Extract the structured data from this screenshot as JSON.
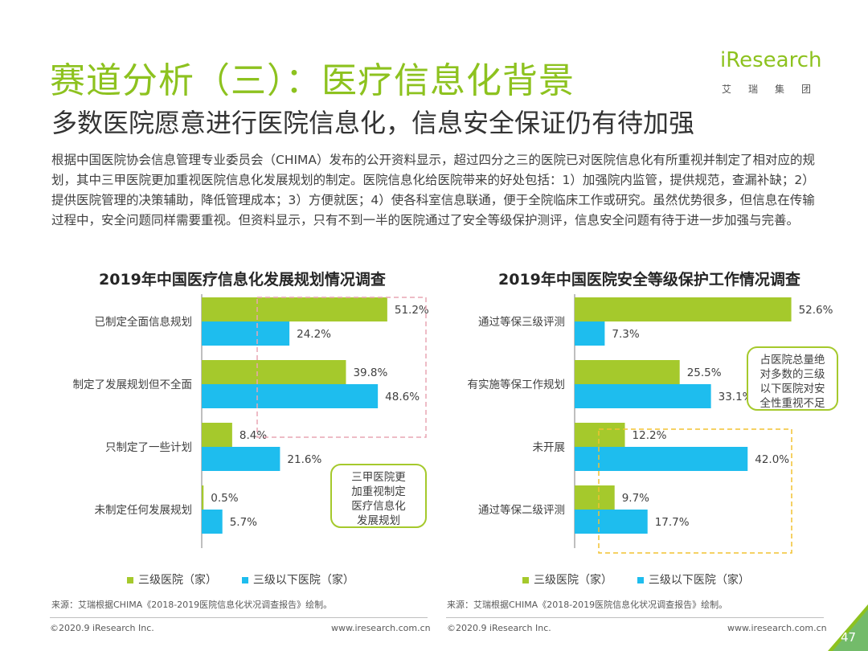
{
  "header": {
    "title": "赛道分析（三）：医疗信息化背景",
    "subtitle": "多数医院愿意进行医院信息化，信息安全保证仍有待加强",
    "body": "根据中国医院协会信息管理专业委员会（CHIMA）发布的公开资料显示，超过四分之三的医院已对医院信息化有所重视并制定了相对应的规划，其中三甲医院更加重视医院信息化发展规划的制定。医院信息化给医院带来的好处包括：1）加强院内监管，提供规范，查漏补缺；2）提供医院管理的决策辅助，降低管理成本；3）方便就医；4）使各科室信息联通，便于全院临床工作或研究。虽然优势很多，但信息在传输过程中，安全问题同样需要重视。但资料显示，只有不到一半的医院通过了安全等级保护测评，信息安全问题有待于进一步加强与完善。"
  },
  "logo": {
    "brand": "iResearch",
    "cn": "艾瑞集团",
    "color": "#8dc21f"
  },
  "colors": {
    "green": "#a5c92c",
    "blue": "#1ebdee",
    "accent": "#8dc21f",
    "pink_dash": "#e9a5b4",
    "yellow_dash": "#f2c230",
    "note_border": "#a5c92c"
  },
  "chart_data": [
    {
      "type": "bar",
      "orientation": "horizontal",
      "title": "2019年中国医疗信息化发展规划情况调查",
      "categories": [
        "已制定全面信息规划",
        "制定了发展规划但不全面",
        "只制定了一些计划",
        "未制定任何发展规划"
      ],
      "series": [
        {
          "name": "三级医院（家）",
          "values": [
            51.2,
            39.8,
            8.4,
            0.5
          ],
          "labels": [
            "51.2%",
            "39.8%",
            "8.4%",
            "0.5%"
          ]
        },
        {
          "name": "三级以下医院（家）",
          "values": [
            24.2,
            48.6,
            21.6,
            5.7
          ],
          "labels": [
            "24.2%",
            "48.6%",
            "21.6%",
            "5.7%"
          ]
        }
      ],
      "xlim": [
        0,
        55
      ],
      "grid": false,
      "legend": "bottom",
      "annotation": "三甲医院更加重视制定医疗信息化发展规划",
      "annotation_lines": [
        "三甲医院更",
        "加重视制定",
        "医疗信息化",
        "发展规划"
      ],
      "source": "来源：艾瑞根据CHIMA《2018-2019医院信息化状况调查报告》绘制。"
    },
    {
      "type": "bar",
      "orientation": "horizontal",
      "title": "2019年中国医院安全等级保护工作情况调查",
      "categories": [
        "通过等保三级评测",
        "有实施等保工作规划",
        "未开展",
        "通过等保二级评测"
      ],
      "series": [
        {
          "name": "三级医院（家）",
          "values": [
            52.6,
            25.5,
            12.2,
            9.7
          ],
          "labels": [
            "52.6%",
            "25.5%",
            "12.2%",
            "9.7%"
          ]
        },
        {
          "name": "三级以下医院（家）",
          "values": [
            7.3,
            33.1,
            42.0,
            17.7
          ],
          "labels": [
            "7.3%",
            "33.1%",
            "42.0%",
            "17.7%"
          ]
        }
      ],
      "xlim": [
        0,
        56
      ],
      "grid": false,
      "legend": "bottom",
      "annotation": "占医院总量绝对多数的三级以下医院对安全性重视不足",
      "annotation_lines": [
        "占医院总量绝",
        "对多数的三级",
        "以下医院对安",
        "全性重视不足"
      ],
      "source": "来源：艾瑞根据CHIMA《2018-2019医院信息化状况调查报告》绘制。"
    }
  ],
  "footer": {
    "left": {
      "copyright": "©2020.9 iResearch Inc.",
      "url": "www.iresearch.com.cn"
    },
    "right": {
      "copyright": "©2020.9 iResearch Inc.",
      "url": "www.iresearch.com.cn"
    },
    "page_number": "47"
  }
}
